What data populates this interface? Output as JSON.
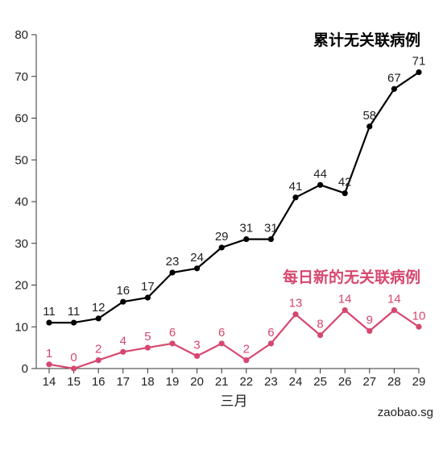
{
  "chart_data": {
    "type": "line",
    "categories": [
      "14",
      "15",
      "16",
      "17",
      "18",
      "19",
      "20",
      "21",
      "22",
      "23",
      "24",
      "25",
      "26",
      "27",
      "28",
      "29"
    ],
    "xlabel": "三月",
    "ylim": [
      0,
      80
    ],
    "yticks": [
      0,
      10,
      20,
      30,
      40,
      50,
      60,
      70,
      80
    ],
    "grid": false,
    "series": [
      {
        "name": "累计无关联病例",
        "color": "#000000",
        "values": [
          11,
          11,
          12,
          16,
          17,
          23,
          24,
          29,
          31,
          31,
          41,
          44,
          42,
          58,
          67,
          71
        ]
      },
      {
        "name": "每日新的无关联病例",
        "color": "#d6476f",
        "values": [
          1,
          0,
          2,
          4,
          5,
          6,
          3,
          6,
          2,
          6,
          13,
          8,
          14,
          9,
          14,
          10
        ]
      }
    ]
  },
  "credit": "zaobao.sg"
}
